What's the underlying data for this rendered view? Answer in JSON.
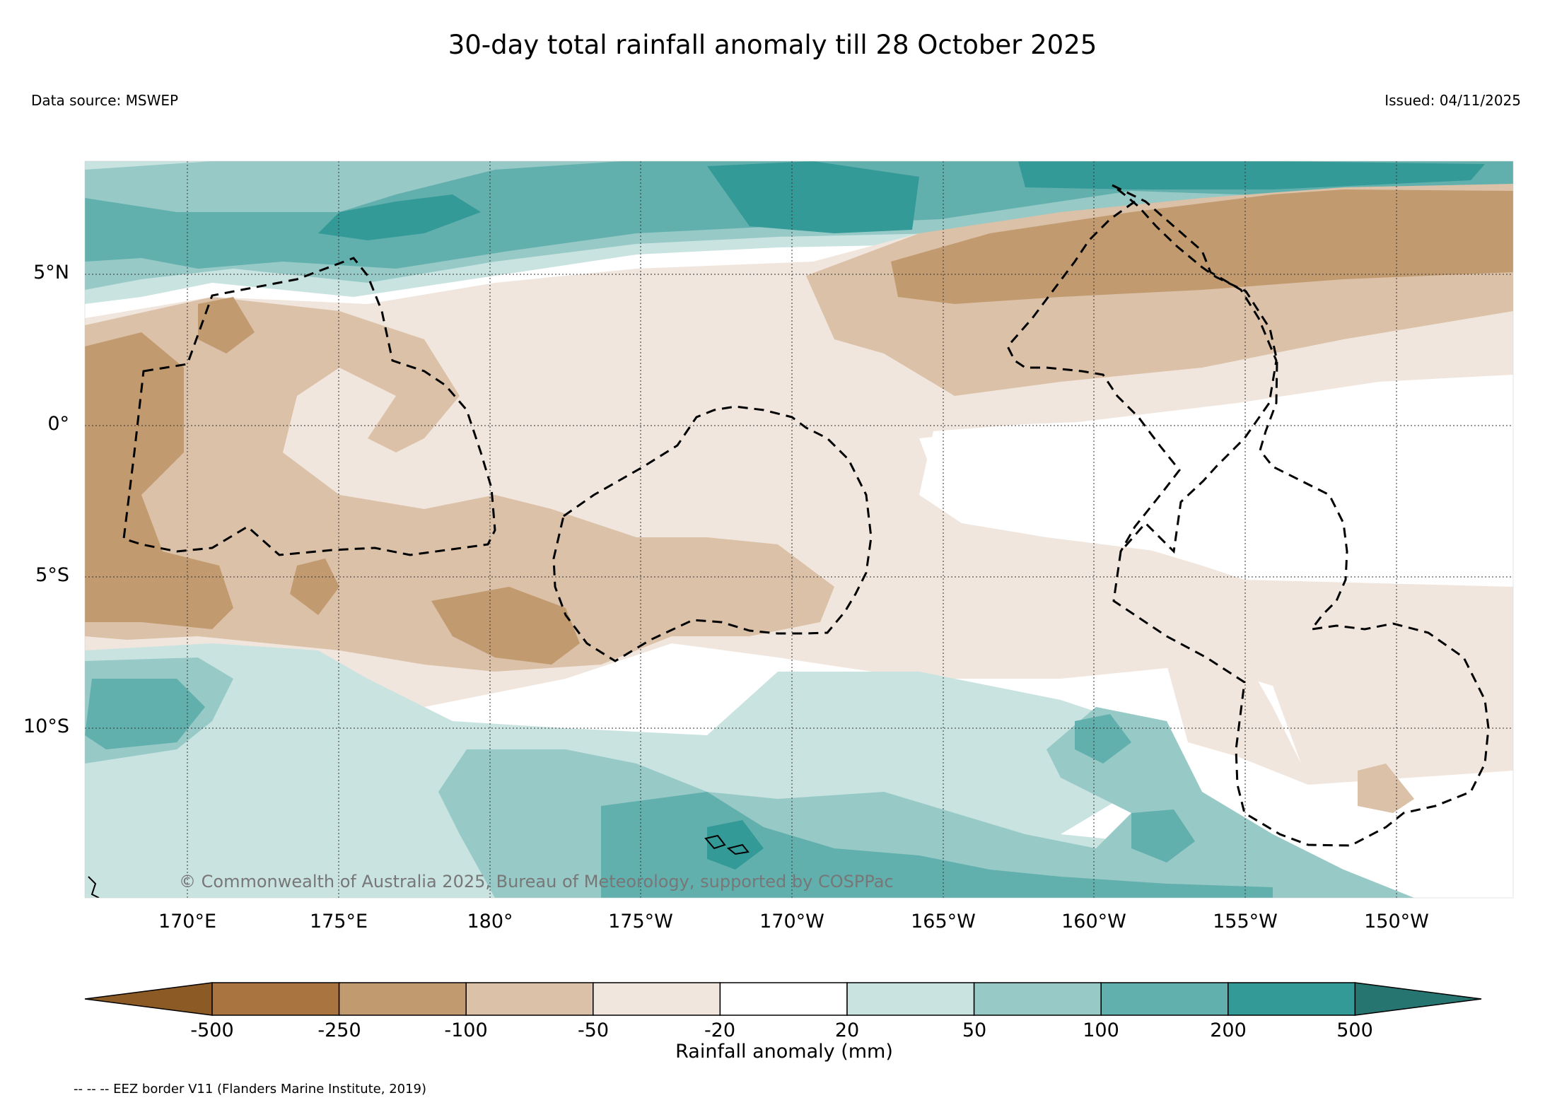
{
  "header": {
    "title": "30-day total rainfall anomaly till 28 October 2025",
    "data_source": "Data source: MSWEP",
    "issued": "Issued: 04/11/2025"
  },
  "map": {
    "lat_labels": [
      "5°N",
      "0°",
      "5°S",
      "10°S"
    ],
    "lon_labels": [
      "170°E",
      "175°E",
      "180°",
      "175°W",
      "170°W",
      "165°W",
      "160°W",
      "155°W",
      "150°W"
    ],
    "copyright": "© Commonwealth of Australia 2025, Bureau of Meteorology, supported by COSPPac"
  },
  "colorbar": {
    "title": "Rainfall anomaly (mm)",
    "tick_labels": [
      "-500",
      "-250",
      "-100",
      "-50",
      "-20",
      "20",
      "50",
      "100",
      "200",
      "500"
    ],
    "colors": [
      "#8c5a24",
      "#a9743f",
      "#c29a6f",
      "#dbc1a7",
      "#f1e6dd",
      "#ffffff",
      "#c9e3e1",
      "#97c9c7",
      "#62b0ad",
      "#339a97",
      "#267571"
    ]
  },
  "legend": {
    "eez_note": "-- -- -- EEZ border V11 (Flanders Marine Institute, 2019)"
  },
  "colors": {
    "dry_strong": "#c29a6f",
    "dry_moderate": "#dbc1a7",
    "dry_light": "#f1e6dd",
    "wet_light": "#c9e3e1",
    "wet_moderate": "#97c9c7",
    "wet_strong": "#62b0ad",
    "wet_very_strong": "#339a97"
  }
}
